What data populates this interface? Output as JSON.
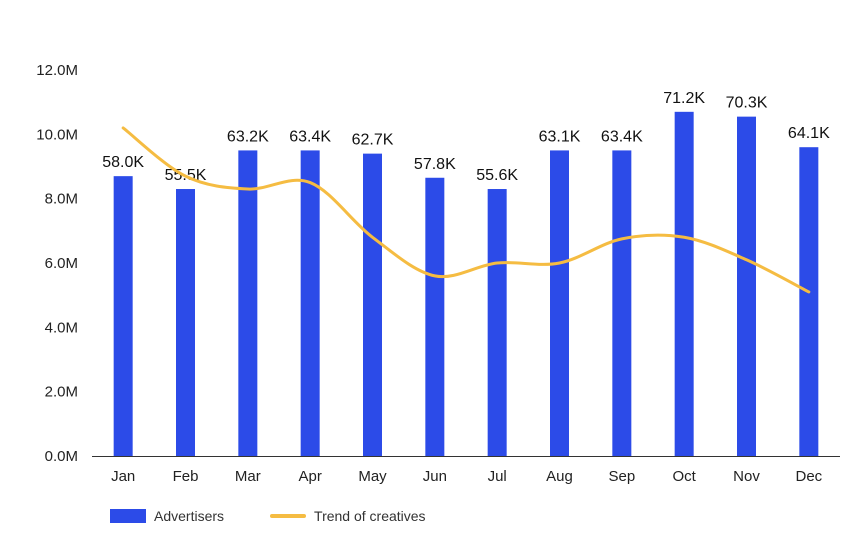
{
  "chart_data": {
    "type": "bar",
    "title": "",
    "xlabel": "",
    "ylabel": "",
    "categories": [
      "Jan",
      "Feb",
      "Mar",
      "Apr",
      "May",
      "Jun",
      "Jul",
      "Aug",
      "Sep",
      "Oct",
      "Nov",
      "Dec"
    ],
    "y_ticks": [
      "0.0M",
      "2.0M",
      "4.0M",
      "6.0M",
      "8.0M",
      "10.0M",
      "12.0M"
    ],
    "ylim": [
      0,
      12
    ],
    "grid": false,
    "legend_placement": "bottom-left",
    "series": [
      {
        "name": "Advertisers",
        "type": "bar",
        "color": "#2c4be8",
        "values": [
          8.7,
          8.3,
          9.5,
          9.5,
          9.4,
          8.65,
          8.3,
          9.5,
          9.5,
          10.7,
          10.55,
          9.6
        ],
        "data_labels": [
          "58.0K",
          "55.5K",
          "63.2K",
          "63.4K",
          "62.7K",
          "57.8K",
          "55.6K",
          "63.1K",
          "63.4K",
          "71.2K",
          "70.3K",
          "64.1K"
        ]
      },
      {
        "name": "Trend of creatives",
        "type": "line",
        "color": "#f5bc42",
        "values": [
          10.2,
          8.7,
          8.3,
          8.5,
          6.8,
          5.6,
          6.0,
          6.0,
          6.75,
          6.8,
          6.1,
          5.1
        ]
      }
    ]
  }
}
